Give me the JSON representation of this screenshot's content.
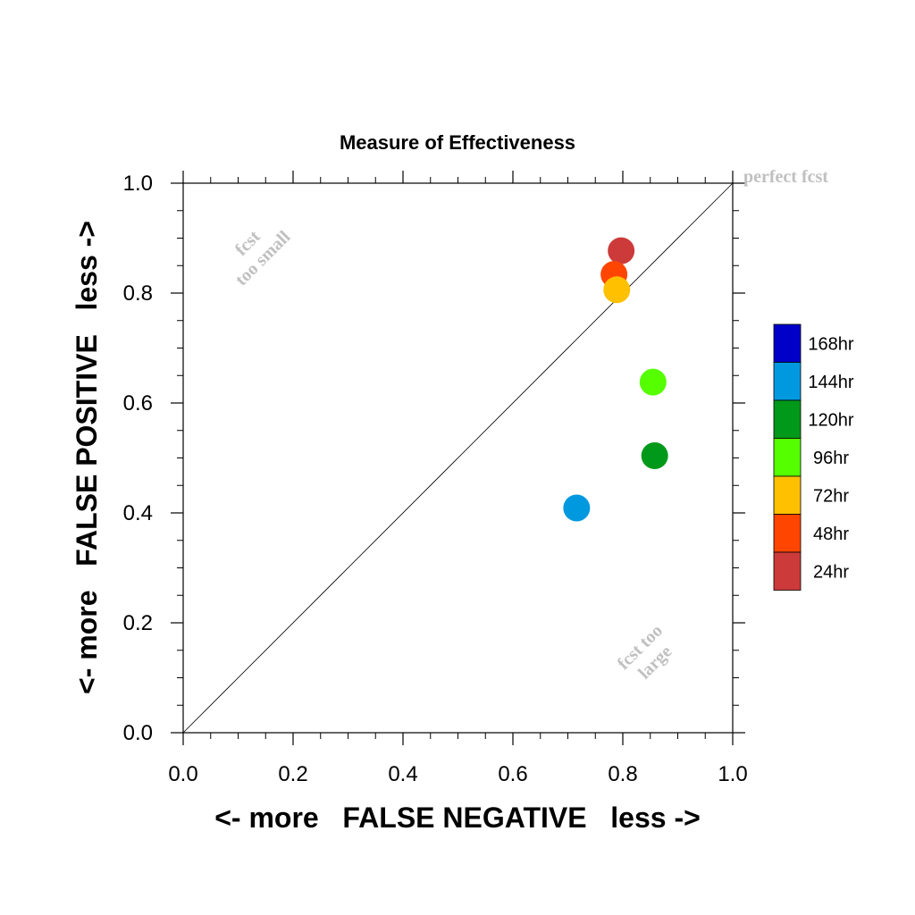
{
  "chart_data": {
    "type": "scatter",
    "title": "Measure of Effectiveness",
    "xlabel": "<- more   FALSE NEGATIVE   less ->",
    "ylabel": "<- more   FALSE POSITIVE   less ->",
    "xlim": [
      0.0,
      1.0
    ],
    "ylim": [
      0.0,
      1.0
    ],
    "xticks": [
      "0.0",
      "0.2",
      "0.4",
      "0.6",
      "0.8",
      "1.0"
    ],
    "yticks": [
      "0.0",
      "0.2",
      "0.4",
      "0.6",
      "0.8",
      "1.0"
    ],
    "grid": false,
    "diagonal_line": true,
    "annotations": {
      "perfect": "perfect fcst",
      "small_line1": "fcst",
      "small_line2": "too small",
      "large_line1": "fcst too",
      "large_line2": "large"
    },
    "legend_position": "right",
    "series": [
      {
        "name": "24hr",
        "color": "#cc3a3a",
        "x": 0.797,
        "y": 0.877
      },
      {
        "name": "48hr",
        "color": "#ff4500",
        "x": 0.784,
        "y": 0.834
      },
      {
        "name": "72hr",
        "color": "#ffc000",
        "x": 0.789,
        "y": 0.806
      },
      {
        "name": "96hr",
        "color": "#55ff00",
        "x": 0.855,
        "y": 0.638
      },
      {
        "name": "120hr",
        "color": "#00991a",
        "x": 0.858,
        "y": 0.504
      },
      {
        "name": "144hr",
        "color": "#0099e0",
        "x": 0.716,
        "y": 0.409
      },
      {
        "name": "168hr",
        "color": "#0000c8",
        "x": null,
        "y": null
      }
    ],
    "legend_order": [
      "168hr",
      "144hr",
      "120hr",
      "96hr",
      "72hr",
      "48hr",
      "24hr"
    ]
  }
}
